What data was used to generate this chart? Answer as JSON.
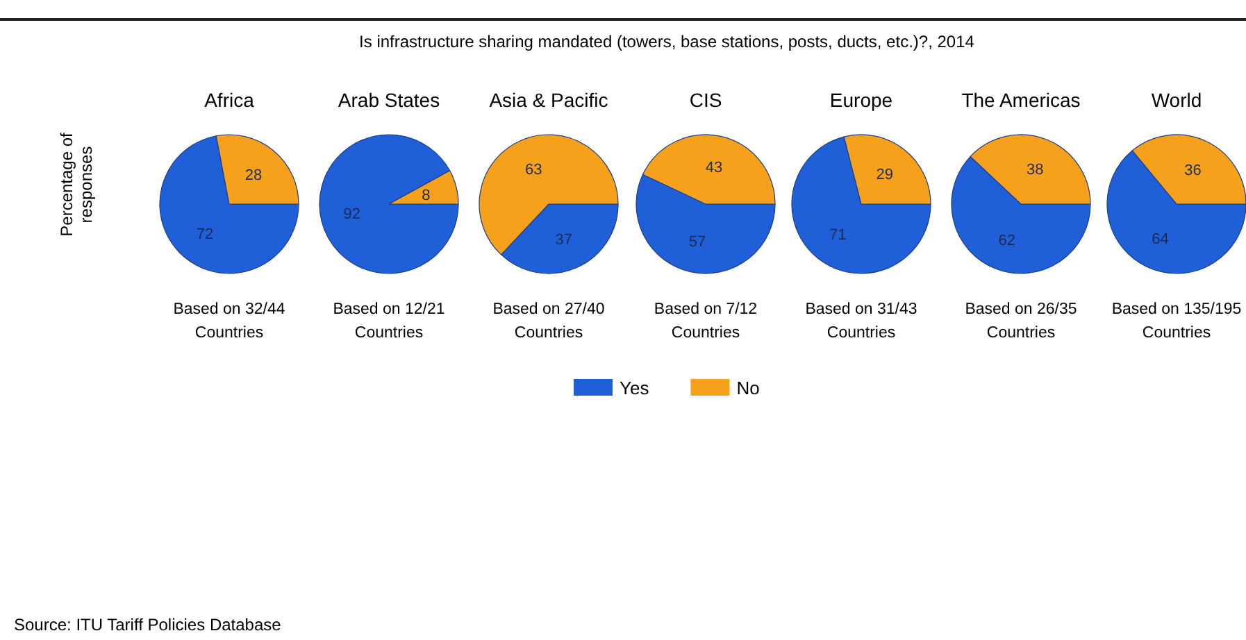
{
  "chart_data": [
    {
      "type": "pie",
      "title": "Africa",
      "ylabel": "Percentage of responses",
      "legend": "bottom",
      "categories": [
        "Yes",
        "No"
      ],
      "values": [
        72,
        28
      ],
      "colors": [
        "#1f5fd8",
        "#f5a11c"
      ],
      "data_labels": true,
      "annotations": [
        "Based on 32/44 Countries",
        "Is infrastructure sharing mandated (towers, base stations, posts, ducts, etc.)?, 2014",
        "Source: ITU Tariff Policies Database"
      ]
    },
    {
      "type": "pie",
      "title": "Arab States",
      "categories": [
        null,
        null
      ],
      "values": [
        92,
        8
      ],
      "colors": [
        "#1f5fd8",
        "#f5a11c"
      ],
      "data_labels": true,
      "annotations": [
        "Based on 12/21 Countries"
      ]
    },
    {
      "type": "pie",
      "title": "Asia & Pacific",
      "categories": [
        null,
        null
      ],
      "values": [
        37,
        63
      ],
      "colors": [
        "#1f5fd8",
        "#f5a11c"
      ],
      "data_labels": true,
      "annotations": [
        "Based on 27/40 Countries"
      ]
    },
    {
      "type": "pie",
      "title": "CIS",
      "categories": [
        null,
        null
      ],
      "values": [
        57,
        43
      ],
      "colors": [
        "#1f5fd8",
        "#f5a11c"
      ],
      "data_labels": true,
      "annotations": [
        "Based on 7/12 Countries"
      ]
    },
    {
      "type": "pie",
      "title": "Europe",
      "categories": [
        null,
        null
      ],
      "values": [
        71,
        29
      ],
      "colors": [
        "#1f5fd8",
        "#f5a11c"
      ],
      "data_labels": true,
      "annotations": [
        "Based on 31/43 Countries"
      ]
    },
    {
      "type": "pie",
      "title": "The Americas",
      "categories": [
        null,
        null
      ],
      "values": [
        62,
        38
      ],
      "colors": [
        "#1f5fd8",
        "#f5a11c"
      ],
      "data_labels": true,
      "annotations": [
        "Based on 26/35 Countries"
      ]
    },
    {
      "type": "pie",
      "title": "World",
      "categories": [
        null,
        null
      ],
      "values": [
        64,
        36
      ],
      "colors": [
        "#1f5fd8",
        "#f5a11c"
      ],
      "data_labels": true,
      "annotations": [
        "Based on 135/195 Countries"
      ]
    }
  ]
}
